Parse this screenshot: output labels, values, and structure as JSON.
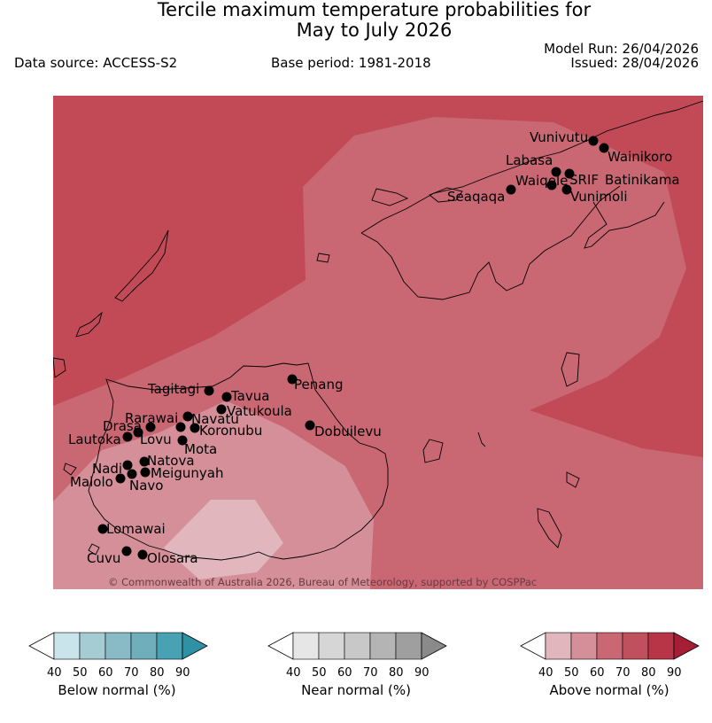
{
  "header": {
    "title_line1": "Tercile maximum temperature probabilities for",
    "title_line2": "May to July 2026",
    "data_source": "Data source: ACCESS-S2",
    "base_period": "Base period: 1981-2018",
    "model_run": "Model Run: 26/04/2026",
    "issued": "Issued: 28/04/2026"
  },
  "map": {
    "copyright": "© Commonwealth of Australia 2026, Bureau of Meteorology, supported by COSPPac",
    "stations": [
      "Vunivutu",
      "Wainikoro",
      "Labasa",
      "SRIF",
      "Batinikama",
      "Waiqele",
      "Vunimoli",
      "Seaqaqa",
      "Penang",
      "Tagitagi",
      "Tavua",
      "Vatukoula",
      "Rarawai",
      "Navatu",
      "Koronubu",
      "Dobuilevu",
      "Drasa",
      "Lovu",
      "Lautoka",
      "Mota",
      "Natova",
      "Nadi",
      "Meigunyah",
      "Malolo",
      "Navo",
      "Lomawai",
      "Cuvu",
      "Olosara"
    ]
  },
  "colors": {
    "above": [
      "#ffffff",
      "#e1b7bd",
      "#d48f98",
      "#c96773",
      "#c0505d",
      "#b73546",
      "#a51e35"
    ],
    "near": [
      "#ffffff",
      "#e6e6e6",
      "#d6d6d6",
      "#c8c8c8",
      "#b4b4b4",
      "#9f9f9f",
      "#8a8a8a"
    ],
    "below": [
      "#ffffff",
      "#c9e4ea",
      "#a6ccd3",
      "#88bbc5",
      "#6fafbb",
      "#48a2b3",
      "#2e91a4"
    ]
  },
  "legends": {
    "ticks": [
      "40",
      "50",
      "60",
      "70",
      "80",
      "90"
    ],
    "below_title": "Below normal (%)",
    "near_title": "Near normal (%)",
    "above_title": "Above normal (%)"
  }
}
